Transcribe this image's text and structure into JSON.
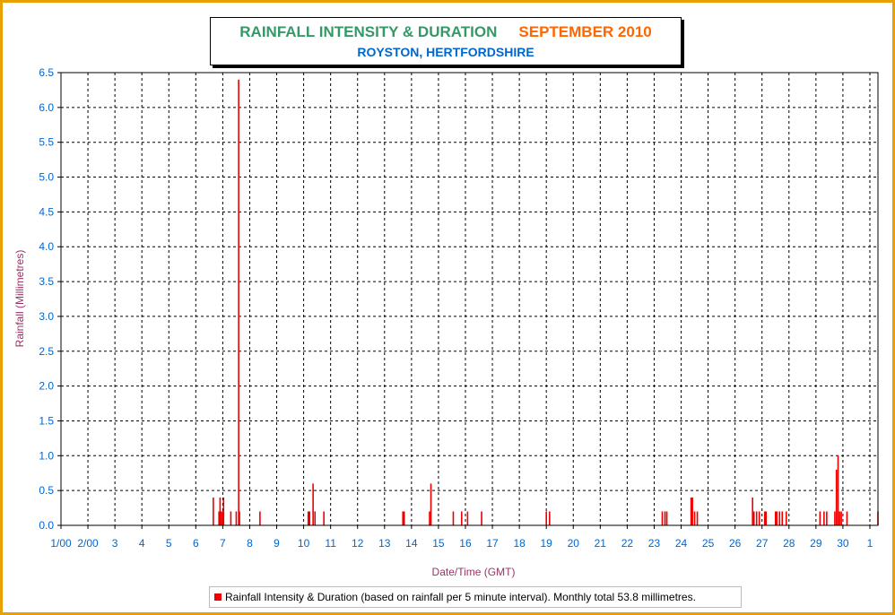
{
  "title": {
    "main": "RAINFALL INTENSITY & DURATION",
    "month": "SEPTEMBER 2010",
    "subtitle": "ROYSTON, HERTFORDSHIRE"
  },
  "legend": {
    "label": "Rainfall Intensity & Duration (based on rainfall per 5 minute interval). Monthly total 53.8 millimetres."
  },
  "colors": {
    "frame": "#e8a000",
    "bars": "#ee0000",
    "axis_text": "#0066cc",
    "axis_title": "#993366",
    "title_main": "#339966",
    "title_month": "#ff6600"
  },
  "chart_data": {
    "type": "bar",
    "xlabel": "Date/Time (GMT)",
    "ylabel": "Rainfall (Millimetres)",
    "xlim": [
      1,
      31.3
    ],
    "ylim": [
      0,
      6.5
    ],
    "x_ticks": [
      "1/00",
      "2/00",
      "3",
      "4",
      "5",
      "6",
      "7",
      "8",
      "9",
      "10",
      "11",
      "12",
      "13",
      "14",
      "15",
      "16",
      "17",
      "18",
      "19",
      "20",
      "21",
      "22",
      "23",
      "24",
      "25",
      "26",
      "27",
      "28",
      "29",
      "30",
      "1"
    ],
    "y_ticks": [
      "0.0",
      "0.5",
      "1.0",
      "1.5",
      "2.0",
      "2.5",
      "3.0",
      "3.5",
      "4.0",
      "4.5",
      "5.0",
      "5.5",
      "6.0",
      "6.5"
    ],
    "grid": true,
    "legend_position": "bottom",
    "x": [
      6.65,
      6.86,
      6.9,
      6.95,
      7.0,
      7.03,
      7.3,
      7.5,
      7.59,
      7.62,
      8.38,
      10.17,
      10.22,
      10.35,
      10.42,
      10.75,
      13.68,
      13.73,
      14.67,
      14.72,
      15.55,
      15.86,
      16.08,
      16.6,
      19.0,
      19.12,
      23.3,
      23.4,
      23.47,
      24.37,
      24.42,
      24.5,
      24.6,
      26.65,
      26.7,
      26.8,
      26.9,
      27.1,
      27.15,
      27.5,
      27.55,
      27.65,
      27.75,
      27.9,
      29.15,
      29.3,
      29.4,
      29.7,
      29.76,
      29.82,
      29.88,
      29.94,
      30.15,
      31.3
    ],
    "y": [
      0.4,
      0.2,
      0.4,
      0.2,
      0.2,
      0.4,
      0.2,
      0.2,
      6.4,
      0.2,
      0.2,
      0.2,
      0.2,
      0.6,
      0.2,
      0.2,
      0.2,
      0.2,
      0.2,
      0.6,
      0.2,
      0.2,
      0.2,
      0.2,
      0.2,
      0.2,
      0.2,
      0.2,
      0.2,
      0.4,
      0.4,
      0.2,
      0.2,
      0.4,
      0.2,
      0.2,
      0.2,
      0.2,
      0.2,
      0.2,
      0.2,
      0.2,
      0.2,
      0.2,
      0.2,
      0.2,
      0.2,
      0.2,
      0.8,
      1.0,
      0.2,
      0.2,
      0.2,
      0.2
    ]
  }
}
